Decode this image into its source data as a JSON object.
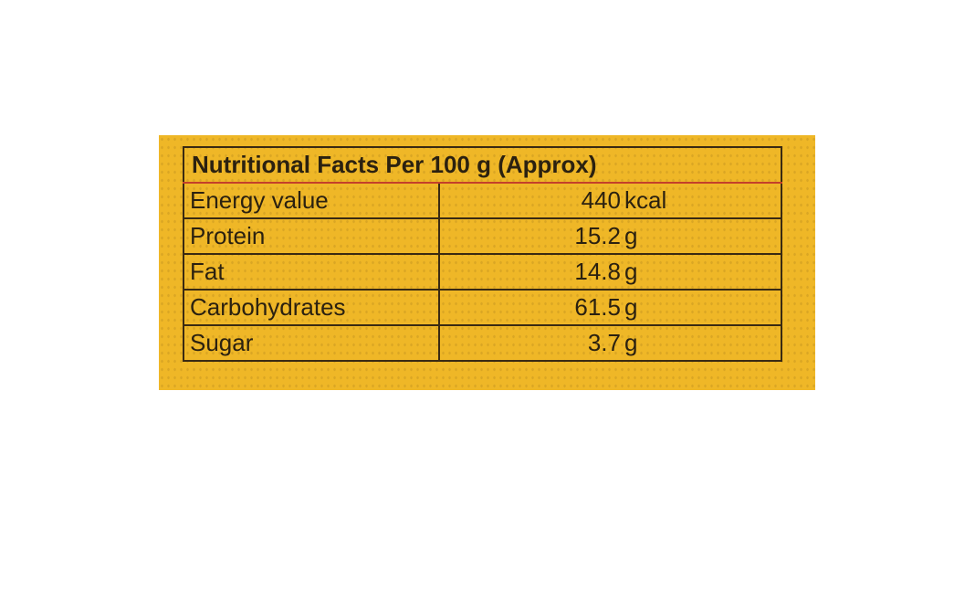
{
  "table": {
    "title": "Nutritional Facts Per 100 g (Approx)",
    "rows": [
      [
        "Energy value",
        "440",
        "kcal"
      ],
      [
        "Protein",
        "15.2",
        "g"
      ],
      [
        "Fat",
        "14.8",
        "g"
      ],
      [
        "Carbohydrates",
        "61.5",
        "g"
      ],
      [
        "Sugar",
        "3.7",
        "g"
      ]
    ]
  }
}
